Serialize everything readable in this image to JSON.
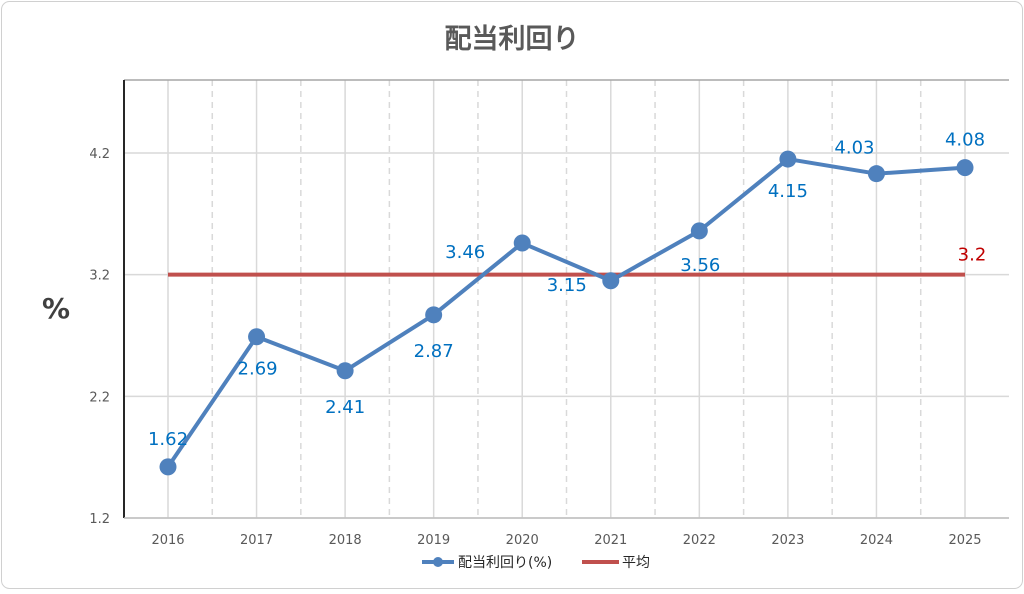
{
  "chart_data": {
    "type": "line",
    "title": "配当利回り",
    "ylabel": "%",
    "xlabel": "",
    "categories": [
      "2016",
      "2017",
      "2018",
      "2019",
      "2020",
      "2021",
      "2022",
      "2023",
      "2024",
      "2025"
    ],
    "ylim": [
      1.2,
      4.8
    ],
    "yticks": [
      "1.2",
      "2.2",
      "3.2",
      "4.2"
    ],
    "grid": true,
    "legend_position": "bottom",
    "series": [
      {
        "name": "配当利回り(%)",
        "color": "#4F81BD",
        "values": [
          1.62,
          2.69,
          2.41,
          2.87,
          3.46,
          3.15,
          3.56,
          4.15,
          4.03,
          4.08
        ],
        "labels": [
          "1.62",
          "2.69",
          "2.41",
          "2.87",
          "3.46",
          "3.15",
          "3.56",
          "4.15",
          "4.03",
          "4.08"
        ],
        "label_color": "#0070C0"
      },
      {
        "name": "平均",
        "color": "#C0504D",
        "values": [
          3.2,
          3.2,
          3.2,
          3.2,
          3.2,
          3.2,
          3.2,
          3.2,
          3.2,
          3.2
        ],
        "end_label": "3.2",
        "label_color": "#C00000"
      }
    ]
  }
}
